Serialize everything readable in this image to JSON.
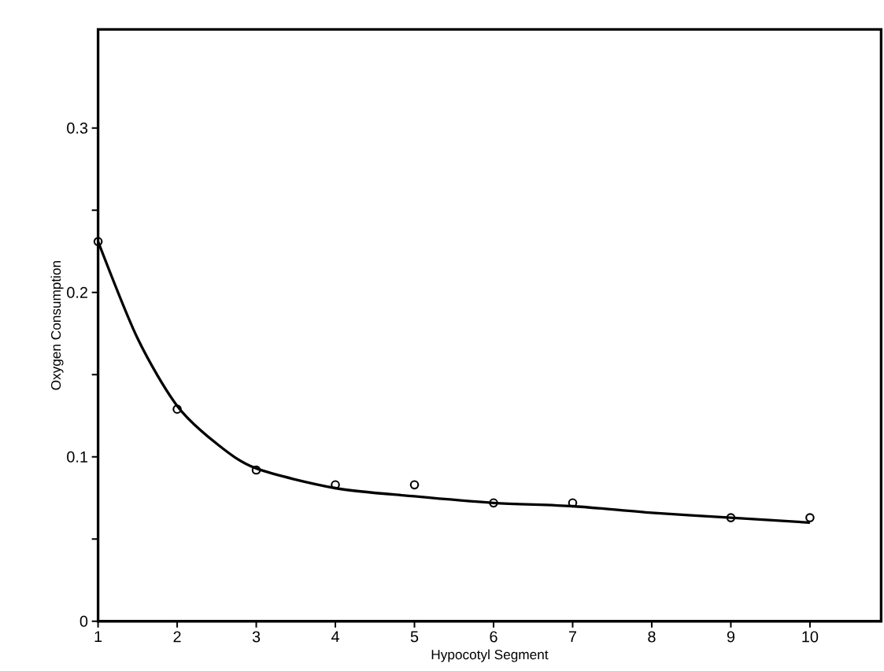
{
  "chart_data": {
    "type": "scatter",
    "xlabel": "Hypocotyl Segment",
    "ylabel": "Oxygen Consumption",
    "xlim": [
      1,
      10.9
    ],
    "xticks": [
      1,
      2,
      3,
      4,
      5,
      6,
      7,
      8,
      9,
      10
    ],
    "ylim": [
      0,
      0.36
    ],
    "yticks": [
      0,
      {
        "value": 0.05,
        "label": null
      },
      0.1,
      {
        "value": 0.15,
        "label": null
      },
      0.2,
      {
        "value": 0.25,
        "label": null
      },
      0.3
    ],
    "series": [
      {
        "color": "#000000",
        "marker": "circle",
        "x": [
          1,
          2,
          3,
          4,
          5,
          6,
          7,
          9,
          10
        ],
        "values": [
          0.231,
          0.129,
          0.092,
          0.083,
          0.083,
          0.072,
          0.072,
          0.063,
          0.063
        ]
      },
      {
        "type": "line",
        "color": "#000000",
        "marker": "none",
        "line_style": "solid",
        "x": [
          1,
          1.5,
          2,
          2.5,
          3,
          4,
          5,
          6,
          7,
          8,
          9,
          10
        ],
        "values": [
          0.231,
          0.172,
          0.131,
          0.108,
          0.093,
          0.081,
          0.076,
          0.072,
          0.07,
          0.066,
          0.063,
          0.06
        ]
      }
    ]
  }
}
